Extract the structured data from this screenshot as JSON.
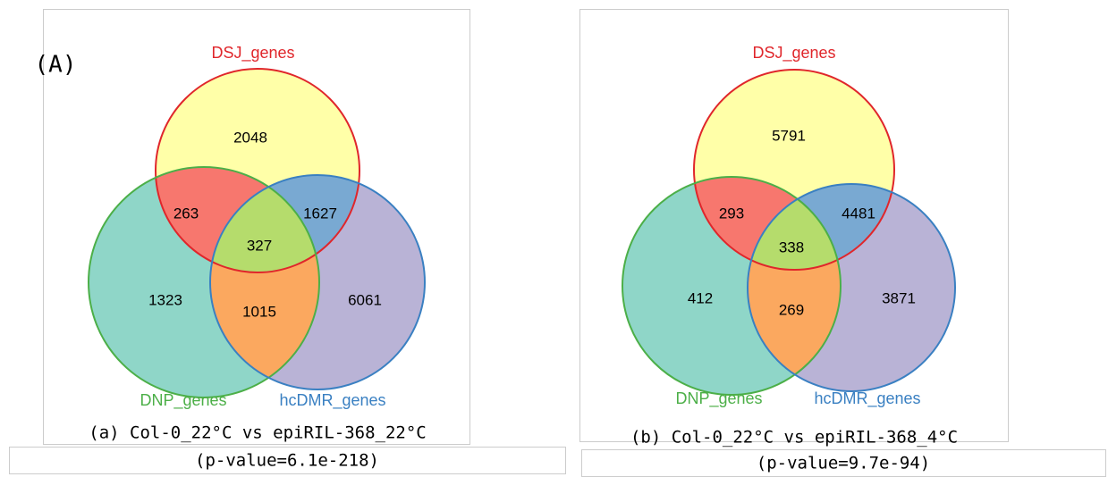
{
  "label": "(A)",
  "panels": [
    {
      "sets": [
        "DSJ_genes",
        "DNP_genes",
        "hcDMR_genes"
      ],
      "regions": {
        "dsj_only": 2048,
        "dsj_dnp": 263,
        "dsj_hcdmr": 1627,
        "all": 327,
        "dnp_only": 1323,
        "dnp_hcdmr": 1015,
        "hcdmr_only": 6061
      },
      "caption": "(a) Col-0_22°C vs epiRIL-368_22°C",
      "pvalue": "(p-value=6.1e-218)"
    },
    {
      "sets": [
        "DSJ_genes",
        "DNP_genes",
        "hcDMR_genes"
      ],
      "regions": {
        "dsj_only": 5791,
        "dsj_dnp": 293,
        "dsj_hcdmr": 4481,
        "all": 338,
        "dnp_only": 412,
        "dnp_hcdmr": 269,
        "hcdmr_only": 3871
      },
      "caption": "(b) Col-0_22°C vs epiRIL-368_4°C",
      "pvalue": "(p-value=9.7e-94)"
    }
  ]
}
